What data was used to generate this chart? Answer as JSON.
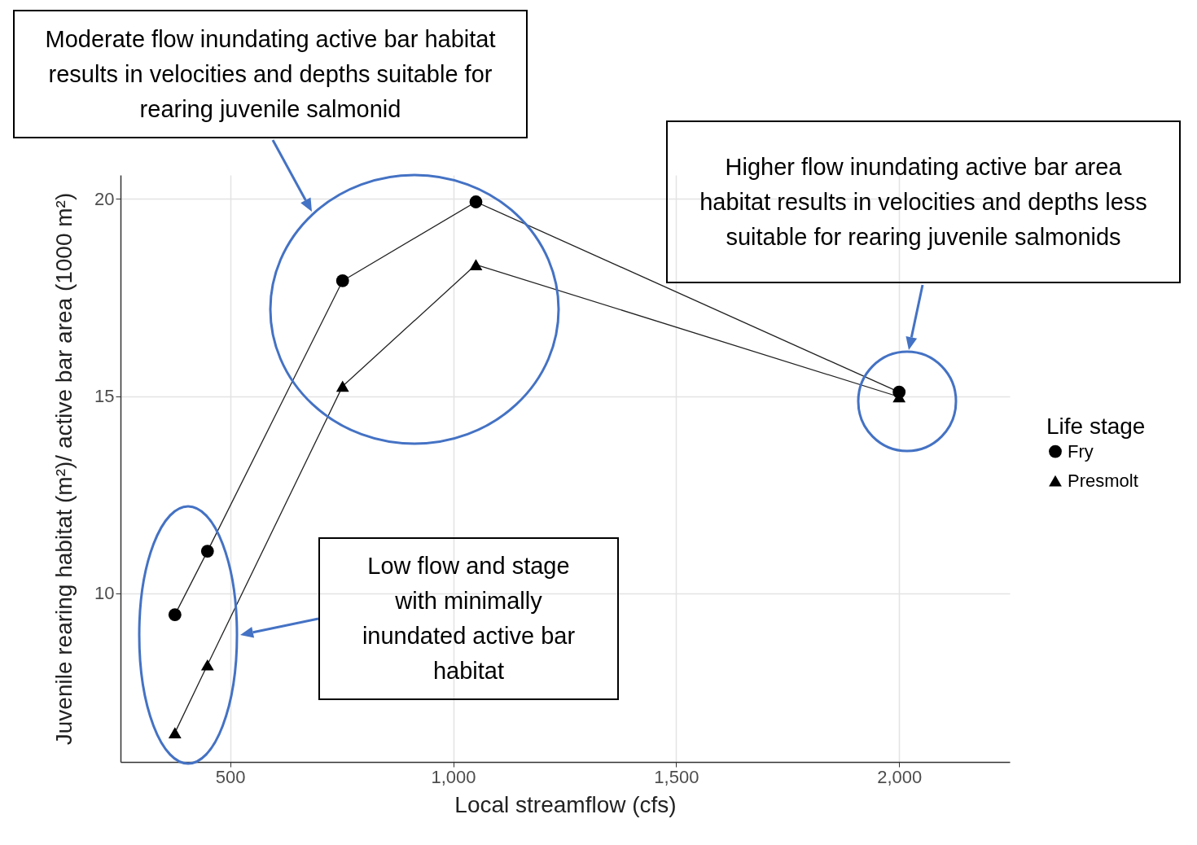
{
  "chart_data": {
    "type": "line",
    "xlabel": "Local streamflow (cfs)",
    "ylabel": "Juvenile rearing habitat (m²)/ active bar area (1000 m²)",
    "legend_title": "Life stage",
    "x": [
      376,
      449,
      752,
      1051,
      2000
    ],
    "series": [
      {
        "name": "Fry",
        "color": "#000000",
        "marker": "circle",
        "values": [
          9.46,
          11.07,
          17.92,
          19.92,
          15.1
        ]
      },
      {
        "name": "Presmolt",
        "color": "#000000",
        "marker": "triangle",
        "values": [
          6.47,
          8.19,
          15.25,
          18.33,
          14.98
        ]
      }
    ],
    "xlim": [
      254,
      2248
    ],
    "ylim": [
      5.73,
      20.6
    ],
    "xticks": [
      500,
      {
        "value": 1000,
        "label": "1,000"
      },
      {
        "value": 1500,
        "label": "1,500"
      },
      {
        "value": 2000,
        "label": "2,000"
      }
    ],
    "yticks": [
      10,
      15,
      20
    ],
    "grid": true,
    "legend": "right",
    "annotations": [
      "Moderate flow inundating active bar habitat results in velocities and depths suitable for rearing juvenile salmonid",
      "Higher flow inundating active bar area habitat results in velocities and depths less suitable for rearing juvenile salmonids",
      "Low flow and stage with minimally inundated active bar habitat"
    ]
  }
}
